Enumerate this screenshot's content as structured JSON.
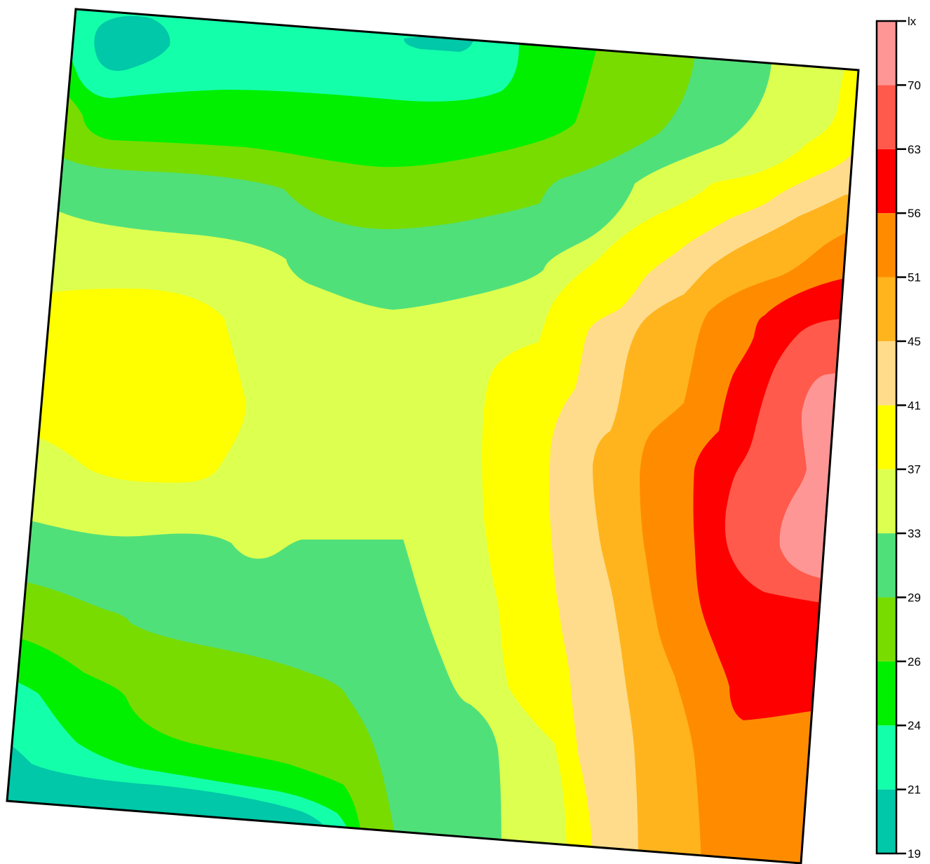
{
  "chart_data": {
    "type": "contour",
    "title": "",
    "unit": "lx",
    "legend": {
      "placement": "right",
      "thresholds": [
        19,
        21,
        24,
        26,
        29,
        33,
        37,
        41,
        45,
        51,
        56,
        63,
        70
      ],
      "top_label": "lx",
      "bands": [
        {
          "from": 19,
          "to": 21,
          "color": "#00C8A8"
        },
        {
          "from": 21,
          "to": 24,
          "color": "#14FFAA"
        },
        {
          "from": 24,
          "to": 26,
          "color": "#00F000"
        },
        {
          "from": 26,
          "to": 29,
          "color": "#78DC00"
        },
        {
          "from": 29,
          "to": 33,
          "color": "#50E07A"
        },
        {
          "from": 33,
          "to": 37,
          "color": "#DCFF50"
        },
        {
          "from": 37,
          "to": 41,
          "color": "#FFFF00"
        },
        {
          "from": 41,
          "to": 45,
          "color": "#FFDC8C"
        },
        {
          "from": 45,
          "to": 51,
          "color": "#FFB41E"
        },
        {
          "from": 51,
          "to": 56,
          "color": "#FF8C00"
        },
        {
          "from": 56,
          "to": 63,
          "color": "#FF0000"
        },
        {
          "from": 63,
          "to": 70,
          "color": "#FF5A4B"
        },
        {
          "from": 70,
          "to": null,
          "color": "#FF9696"
        }
      ]
    }
  }
}
